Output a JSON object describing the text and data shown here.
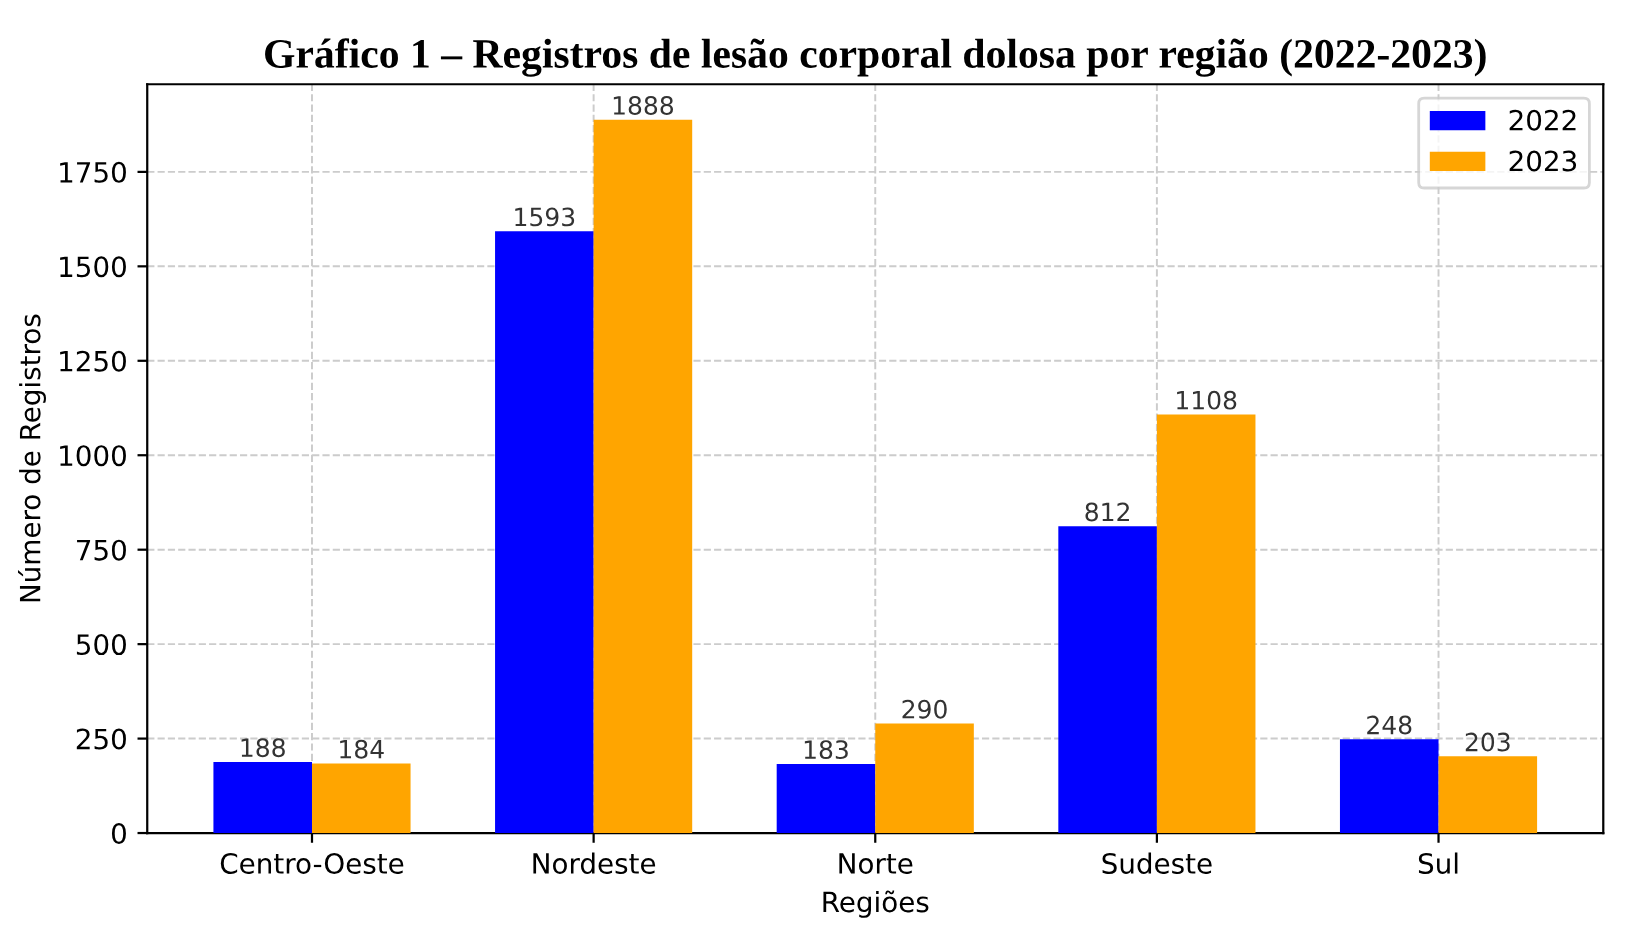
{
  "chart_data": {
    "type": "bar",
    "title": "Gráfico 1 – Registros de lesão corporal dolosa por região (2022-2023)",
    "xlabel": "Regiões",
    "ylabel": "Número de Registros",
    "categories": [
      "Centro-Oeste",
      "Nordeste",
      "Norte",
      "Sudeste",
      "Sul"
    ],
    "series": [
      {
        "name": "2022",
        "color": "#0000ff",
        "values": [
          188,
          1593,
          183,
          812,
          248
        ]
      },
      {
        "name": "2023",
        "color": "#ffa500",
        "values": [
          184,
          1888,
          290,
          1108,
          203
        ]
      }
    ],
    "ylim": [
      0,
      1982
    ],
    "yticks": [
      0,
      250,
      500,
      750,
      1000,
      1250,
      1500,
      1750
    ],
    "grid": true,
    "legend": "top right",
    "data_labels": true
  }
}
